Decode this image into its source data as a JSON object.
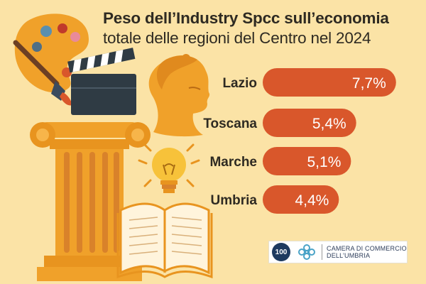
{
  "title": {
    "line1": "Peso dell’Industry Spcc sull’economia",
    "line2": "totale delle regioni del Centro nel 2024"
  },
  "colors": {
    "background": "#fbe3a6",
    "bar": "#d9572b",
    "column": "#f0a12a",
    "accent_dark": "#2e2a22"
  },
  "icons": [
    "paint-palette-icon",
    "paintbrush-icon",
    "clapperboard-icon",
    "classical-bust-icon",
    "column-icon",
    "light-bulb-icon",
    "open-book-icon"
  ],
  "chart_data": {
    "type": "bar",
    "orientation": "horizontal",
    "categories": [
      "Lazio",
      "Toscana",
      "Marche",
      "Umbria"
    ],
    "values": [
      7.7,
      5.4,
      5.1,
      4.4
    ],
    "value_labels": [
      "7,7%",
      "5,4%",
      "5,1%",
      "4,4%"
    ],
    "unit": "%",
    "xlim": [
      0,
      8.2
    ],
    "grid": false,
    "legend": "none"
  },
  "logo": {
    "badge_text": "100",
    "line1": "CAMERA DI COMMERCIO",
    "line2": "DELL’UMBRIA"
  }
}
